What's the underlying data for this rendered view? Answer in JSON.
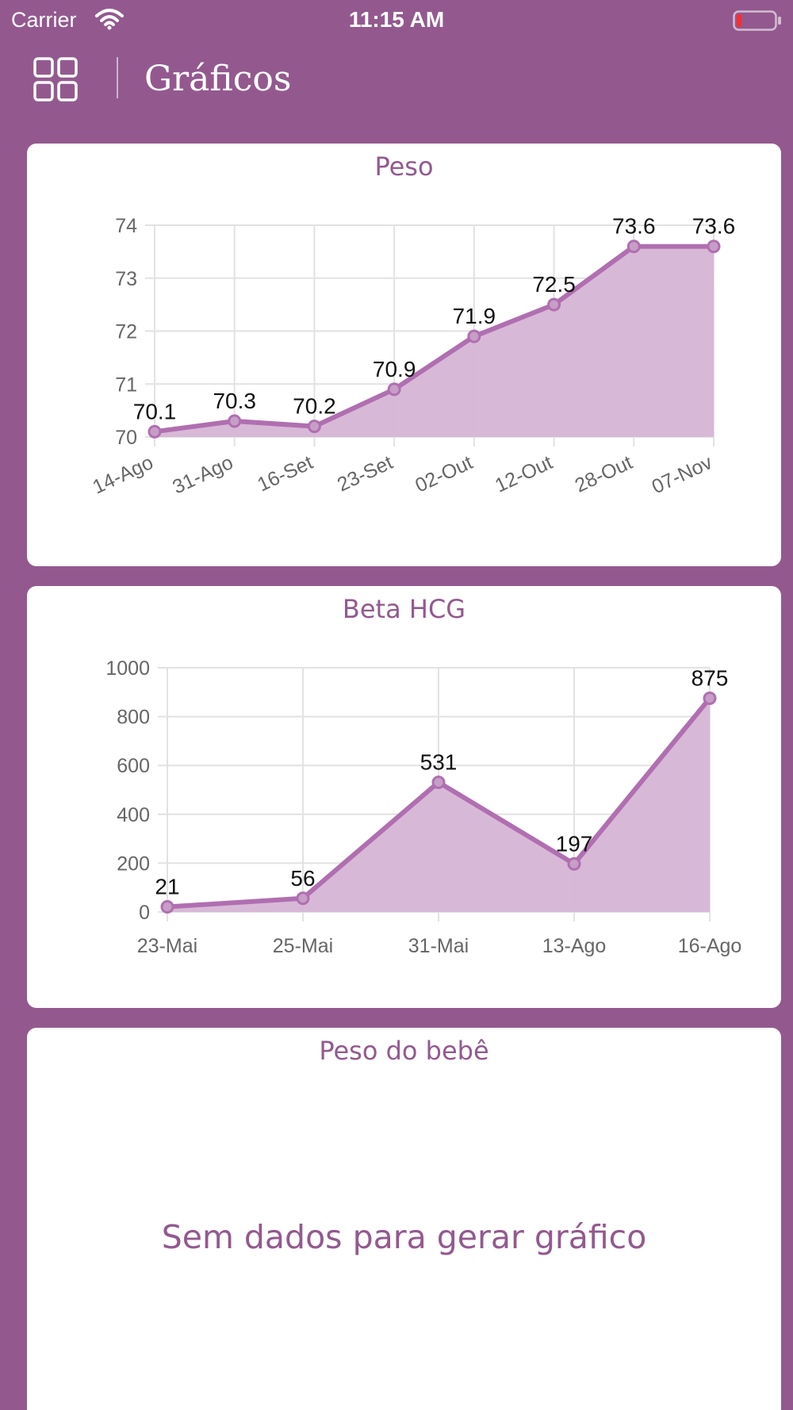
{
  "status_bar": {
    "carrier": "Carrier",
    "time": "11:15 AM"
  },
  "header": {
    "title": "Gráficos",
    "menu_icon": "grid-icon"
  },
  "colors": {
    "background": "#93598f",
    "line": "#b06fb0",
    "fill": "#d6b4d5",
    "card": "#ffffff"
  },
  "cards": [
    {
      "title": "Peso",
      "chart_data": {
        "type": "area",
        "categories": [
          "14-Ago",
          "31-Ago",
          "16-Set",
          "23-Set",
          "02-Out",
          "12-Out",
          "28-Out",
          "07-Nov"
        ],
        "values": [
          70.1,
          70.3,
          70.2,
          70.9,
          71.9,
          72.5,
          73.6,
          73.6
        ],
        "data_labels": [
          "70.1",
          "70.3",
          "70.2",
          "70.9",
          "71.9",
          "72.5",
          "73.6",
          "73.6"
        ],
        "y_ticks": [
          "70",
          "71",
          "72",
          "73",
          "74"
        ],
        "ylim": [
          70,
          74
        ],
        "grid": true
      }
    },
    {
      "title": "Beta HCG",
      "chart_data": {
        "type": "area",
        "categories": [
          "23-Mai",
          "25-Mai",
          "31-Mai",
          "13-Ago",
          "16-Ago"
        ],
        "values": [
          21,
          56,
          531,
          197,
          875
        ],
        "data_labels": [
          "21",
          "56",
          "531",
          "197",
          "875"
        ],
        "y_ticks": [
          "0",
          "200",
          "400",
          "600",
          "800",
          "1000"
        ],
        "ylim": [
          0,
          1000
        ],
        "grid": true
      }
    },
    {
      "title": "Peso do bebê",
      "empty_message": "Sem dados para gerar gráfico"
    }
  ]
}
